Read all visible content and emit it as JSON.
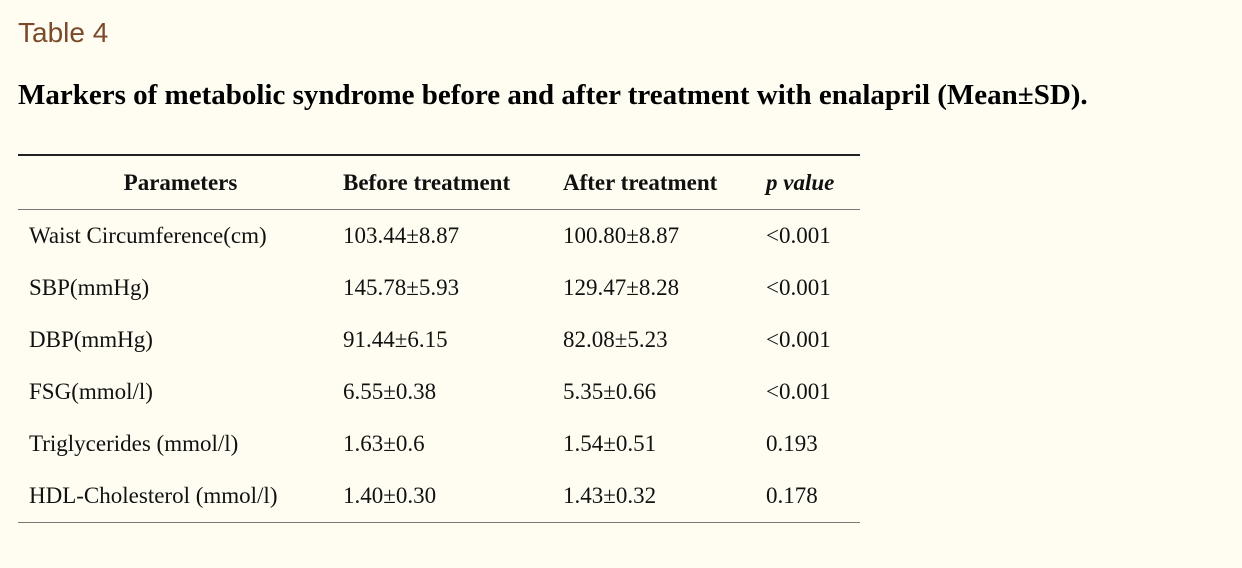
{
  "table_label": "Table 4",
  "caption": "Markers of metabolic syndrome before and after treatment with enalapril (Mean±SD).",
  "table": {
    "headers": [
      "Parameters",
      "Before treatment",
      "After treatment",
      "p value"
    ],
    "rows": [
      [
        "Waist Circumference(cm)",
        "103.44±8.87",
        "100.80±8.87",
        "<0.001"
      ],
      [
        "SBP(mmHg)",
        "145.78±5.93",
        "129.47±8.28",
        "<0.001"
      ],
      [
        "DBP(mmHg)",
        "91.44±6.15",
        "82.08±5.23",
        "<0.001"
      ],
      [
        "FSG(mmol/l)",
        "6.55±0.38",
        "5.35±0.66",
        "<0.001"
      ],
      [
        "Triglycerides (mmol/l)",
        "1.63±0.6",
        "1.54±0.51",
        "0.193"
      ],
      [
        "HDL-Cholesterol (mmol/l)",
        "1.40±0.30",
        "1.43±0.32",
        "0.178"
      ]
    ]
  },
  "colors": {
    "background": "#fffdf2",
    "label": "#7a4a2a",
    "text": "#111111"
  }
}
